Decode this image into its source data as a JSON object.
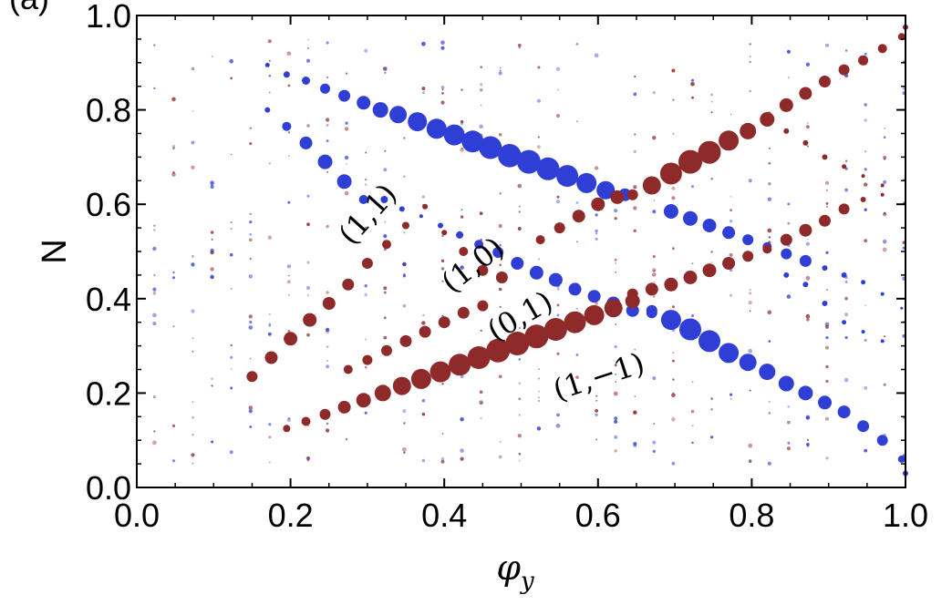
{
  "chart_data": {
    "type": "scatter",
    "panel_label": "(a)",
    "xlabel_main": "φ",
    "xlabel_sub": "y",
    "ylabel": "N",
    "xlim": [
      0.0,
      1.0
    ],
    "ylim": [
      0.0,
      1.0
    ],
    "xticks": [
      "0.0",
      "0.2",
      "0.4",
      "0.6",
      "0.8",
      "1.0"
    ],
    "yticks": [
      "0.0",
      "0.2",
      "0.4",
      "0.6",
      "0.8",
      "1.0"
    ],
    "grid": false,
    "colors": {
      "blue": "#2f3fd6",
      "red": "#8e2a2a"
    },
    "annotations": [
      {
        "text": "(1,1)",
        "x": 0.31,
        "y": 0.565,
        "rotation": -48
      },
      {
        "text": "(1,0)",
        "x": 0.445,
        "y": 0.455,
        "rotation": -38
      },
      {
        "text": "(0,1)",
        "x": 0.505,
        "y": 0.345,
        "rotation": -30
      },
      {
        "text": "(1,−1)",
        "x": 0.605,
        "y": 0.215,
        "rotation": -18
      }
    ],
    "series": [
      {
        "color": "blue",
        "points": [
          [
            0.17,
            0.895,
            2.5
          ],
          [
            0.195,
            0.875,
            3.5
          ],
          [
            0.22,
            0.862,
            4.5
          ],
          [
            0.245,
            0.845,
            5.5
          ],
          [
            0.27,
            0.83,
            6.5
          ],
          [
            0.295,
            0.815,
            7.5
          ],
          [
            0.317,
            0.8,
            8.5
          ],
          [
            0.34,
            0.79,
            9.5
          ],
          [
            0.365,
            0.775,
            10.5
          ],
          [
            0.39,
            0.76,
            11
          ],
          [
            0.413,
            0.747,
            11.5
          ],
          [
            0.437,
            0.733,
            12
          ],
          [
            0.46,
            0.72,
            12.5
          ],
          [
            0.485,
            0.703,
            12.8
          ],
          [
            0.51,
            0.69,
            13
          ],
          [
            0.535,
            0.675,
            12.5
          ],
          [
            0.56,
            0.66,
            12
          ],
          [
            0.585,
            0.645,
            11
          ],
          [
            0.61,
            0.63,
            10
          ],
          [
            0.635,
            0.62,
            7
          ]
        ]
      },
      {
        "color": "blue",
        "points": [
          [
            0.17,
            0.8,
            3
          ],
          [
            0.195,
            0.765,
            5
          ],
          [
            0.22,
            0.73,
            7
          ],
          [
            0.245,
            0.69,
            8
          ],
          [
            0.27,
            0.648,
            8
          ],
          [
            0.295,
            0.61,
            5
          ],
          [
            0.322,
            0.61,
            4
          ],
          [
            0.345,
            0.59,
            3
          ],
          [
            0.37,
            0.575,
            2
          ],
          [
            0.395,
            0.555,
            3
          ],
          [
            0.42,
            0.535,
            4
          ],
          [
            0.445,
            0.515,
            5
          ],
          [
            0.47,
            0.498,
            6
          ],
          [
            0.495,
            0.475,
            7
          ],
          [
            0.52,
            0.455,
            7.5
          ],
          [
            0.545,
            0.44,
            7.5
          ],
          [
            0.57,
            0.42,
            7
          ],
          [
            0.595,
            0.405,
            7
          ],
          [
            0.62,
            0.39,
            7.5
          ],
          [
            0.645,
            0.375,
            7
          ],
          [
            0.67,
            0.37,
            6
          ]
        ]
      },
      {
        "color": "blue",
        "points": [
          [
            0.67,
            0.375,
            6
          ],
          [
            0.695,
            0.355,
            11
          ],
          [
            0.72,
            0.335,
            12
          ],
          [
            0.745,
            0.31,
            12
          ],
          [
            0.77,
            0.285,
            11
          ],
          [
            0.795,
            0.265,
            9.5
          ],
          [
            0.82,
            0.245,
            9
          ],
          [
            0.845,
            0.22,
            8.5
          ],
          [
            0.87,
            0.2,
            8
          ],
          [
            0.895,
            0.18,
            7.5
          ],
          [
            0.92,
            0.16,
            7
          ],
          [
            0.945,
            0.13,
            6.5
          ],
          [
            0.97,
            0.1,
            6
          ],
          [
            0.995,
            0.06,
            4
          ],
          [
            1.0,
            0.03,
            3
          ]
        ]
      },
      {
        "color": "blue",
        "points": [
          [
            0.695,
            0.585,
            8
          ],
          [
            0.72,
            0.57,
            8
          ],
          [
            0.745,
            0.555,
            7.5
          ],
          [
            0.77,
            0.54,
            7
          ],
          [
            0.795,
            0.525,
            6
          ],
          [
            0.82,
            0.51,
            5
          ],
          [
            0.845,
            0.495,
            6
          ],
          [
            0.87,
            0.48,
            6.5
          ],
          [
            0.895,
            0.465,
            3
          ],
          [
            0.92,
            0.45,
            3
          ],
          [
            0.945,
            0.435,
            2.5
          ],
          [
            0.97,
            0.41,
            2
          ],
          [
            0.995,
            0.38,
            1.5
          ]
        ]
      },
      {
        "color": "red",
        "points": [
          [
            0.195,
            0.125,
            4
          ],
          [
            0.22,
            0.14,
            5
          ],
          [
            0.245,
            0.155,
            6
          ],
          [
            0.27,
            0.17,
            7
          ],
          [
            0.295,
            0.185,
            8
          ],
          [
            0.32,
            0.2,
            9
          ],
          [
            0.345,
            0.215,
            10
          ],
          [
            0.37,
            0.23,
            11
          ],
          [
            0.395,
            0.245,
            11.5
          ],
          [
            0.42,
            0.26,
            12
          ],
          [
            0.445,
            0.275,
            12.5
          ],
          [
            0.47,
            0.29,
            13
          ],
          [
            0.495,
            0.305,
            13
          ],
          [
            0.52,
            0.32,
            13
          ],
          [
            0.545,
            0.335,
            12.5
          ],
          [
            0.57,
            0.35,
            12
          ],
          [
            0.595,
            0.365,
            11
          ],
          [
            0.62,
            0.38,
            10
          ],
          [
            0.645,
            0.395,
            8
          ]
        ]
      },
      {
        "color": "red",
        "points": [
          [
            0.645,
            0.62,
            6
          ],
          [
            0.67,
            0.64,
            10
          ],
          [
            0.695,
            0.665,
            12
          ],
          [
            0.72,
            0.69,
            13
          ],
          [
            0.745,
            0.71,
            12.5
          ],
          [
            0.77,
            0.735,
            11
          ],
          [
            0.795,
            0.755,
            9
          ],
          [
            0.82,
            0.78,
            8
          ],
          [
            0.845,
            0.81,
            7.5
          ],
          [
            0.87,
            0.835,
            7
          ],
          [
            0.895,
            0.86,
            6.5
          ],
          [
            0.92,
            0.885,
            6
          ],
          [
            0.945,
            0.905,
            5.5
          ],
          [
            0.97,
            0.93,
            5
          ],
          [
            0.995,
            0.955,
            4
          ],
          [
            1.0,
            0.975,
            3
          ]
        ]
      },
      {
        "color": "red",
        "points": [
          [
            0.15,
            0.235,
            6
          ],
          [
            0.175,
            0.275,
            7
          ],
          [
            0.2,
            0.315,
            7.5
          ],
          [
            0.225,
            0.355,
            7.5
          ],
          [
            0.25,
            0.39,
            7
          ],
          [
            0.275,
            0.43,
            6.5
          ],
          [
            0.3,
            0.475,
            6
          ],
          [
            0.325,
            0.515,
            5
          ],
          [
            0.35,
            0.555,
            4
          ],
          [
            0.375,
            0.595,
            3
          ],
          [
            0.4,
            0.54,
            3
          ],
          [
            0.425,
            0.5,
            5
          ],
          [
            0.45,
            0.46,
            6
          ],
          [
            0.475,
            0.445,
            6.5
          ]
        ]
      },
      {
        "color": "red",
        "points": [
          [
            0.275,
            0.25,
            5
          ],
          [
            0.3,
            0.27,
            5.5
          ],
          [
            0.325,
            0.29,
            6
          ],
          [
            0.35,
            0.31,
            6.5
          ],
          [
            0.375,
            0.33,
            6.5
          ],
          [
            0.4,
            0.35,
            6.5
          ],
          [
            0.425,
            0.37,
            6.5
          ],
          [
            0.45,
            0.385,
            6
          ]
        ]
      },
      {
        "color": "red",
        "points": [
          [
            0.645,
            0.41,
            6
          ],
          [
            0.67,
            0.42,
            7
          ],
          [
            0.695,
            0.43,
            7.5
          ],
          [
            0.72,
            0.445,
            7.5
          ],
          [
            0.745,
            0.46,
            7.5
          ],
          [
            0.77,
            0.475,
            7
          ],
          [
            0.795,
            0.49,
            6
          ],
          [
            0.82,
            0.505,
            5
          ],
          [
            0.845,
            0.525,
            6.5
          ],
          [
            0.87,
            0.545,
            7
          ],
          [
            0.895,
            0.565,
            6.5
          ],
          [
            0.92,
            0.59,
            6
          ],
          [
            0.945,
            0.61,
            3
          ],
          [
            0.97,
            0.62,
            2
          ]
        ]
      },
      {
        "color": "red",
        "points": [
          [
            0.525,
            0.525,
            5
          ],
          [
            0.55,
            0.55,
            6
          ],
          [
            0.575,
            0.575,
            7
          ],
          [
            0.6,
            0.6,
            7.5
          ],
          [
            0.625,
            0.615,
            7.5
          ]
        ]
      },
      {
        "color": "red",
        "points": [
          [
            0.845,
            0.755,
            3
          ],
          [
            0.87,
            0.73,
            3
          ],
          [
            0.895,
            0.7,
            3
          ],
          [
            0.92,
            0.68,
            2.5
          ],
          [
            0.945,
            0.66,
            2
          ],
          [
            0.97,
            0.64,
            2
          ]
        ]
      },
      {
        "color": "blue",
        "points": [
          [
            0.845,
            0.45,
            3
          ],
          [
            0.87,
            0.43,
            3
          ],
          [
            0.895,
            0.39,
            3
          ],
          [
            0.92,
            0.35,
            2.5
          ],
          [
            0.945,
            0.33,
            2
          ],
          [
            0.97,
            0.31,
            2
          ]
        ]
      }
    ],
    "faint_columns_x": [
      0.023,
      0.048,
      0.073,
      0.098,
      0.123,
      0.148,
      0.173,
      0.198,
      0.223,
      0.248,
      0.273,
      0.298,
      0.323,
      0.348,
      0.373,
      0.398,
      0.423,
      0.448,
      0.473,
      0.498,
      0.523,
      0.548,
      0.573,
      0.598,
      0.623,
      0.648,
      0.673,
      0.698,
      0.723,
      0.748,
      0.773,
      0.798,
      0.823,
      0.848,
      0.873,
      0.898,
      0.923,
      0.948,
      0.973,
      0.998
    ]
  }
}
